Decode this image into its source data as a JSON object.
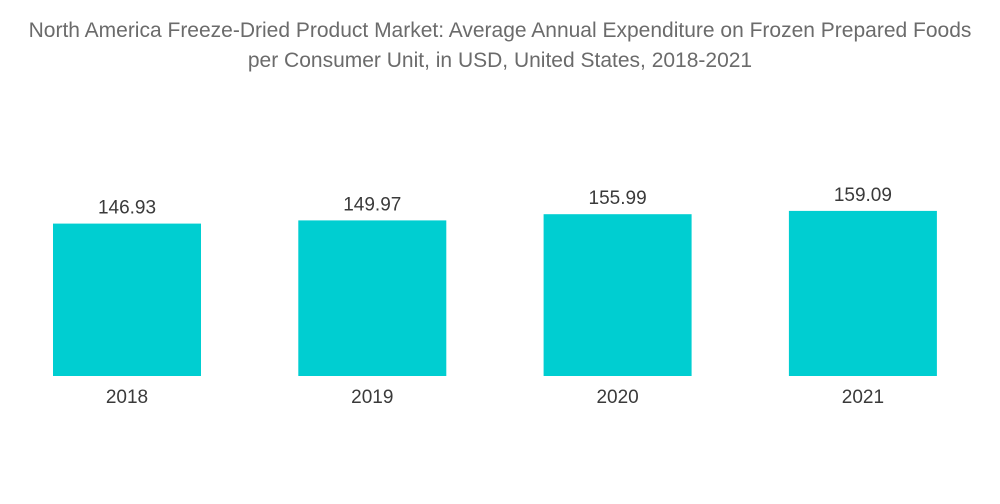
{
  "chart_data": {
    "type": "bar",
    "title": "North America Freeze-Dried Product Market: Average Annual Expenditure on Frozen Prepared Foods per Consumer Unit, in USD, United States, 2018-2021",
    "categories": [
      "2018",
      "2019",
      "2020",
      "2021"
    ],
    "values": [
      146.93,
      149.97,
      155.99,
      159.09
    ],
    "value_labels": [
      "146.93",
      "149.97",
      "155.99",
      "159.09"
    ],
    "xlabel": "",
    "ylabel": "",
    "ylim": [
      0,
      160
    ],
    "grid": false,
    "legend": "none",
    "colors": {
      "bar": "#00CED1",
      "title": "#6b6b6b",
      "text": "#3a3a3a"
    }
  }
}
